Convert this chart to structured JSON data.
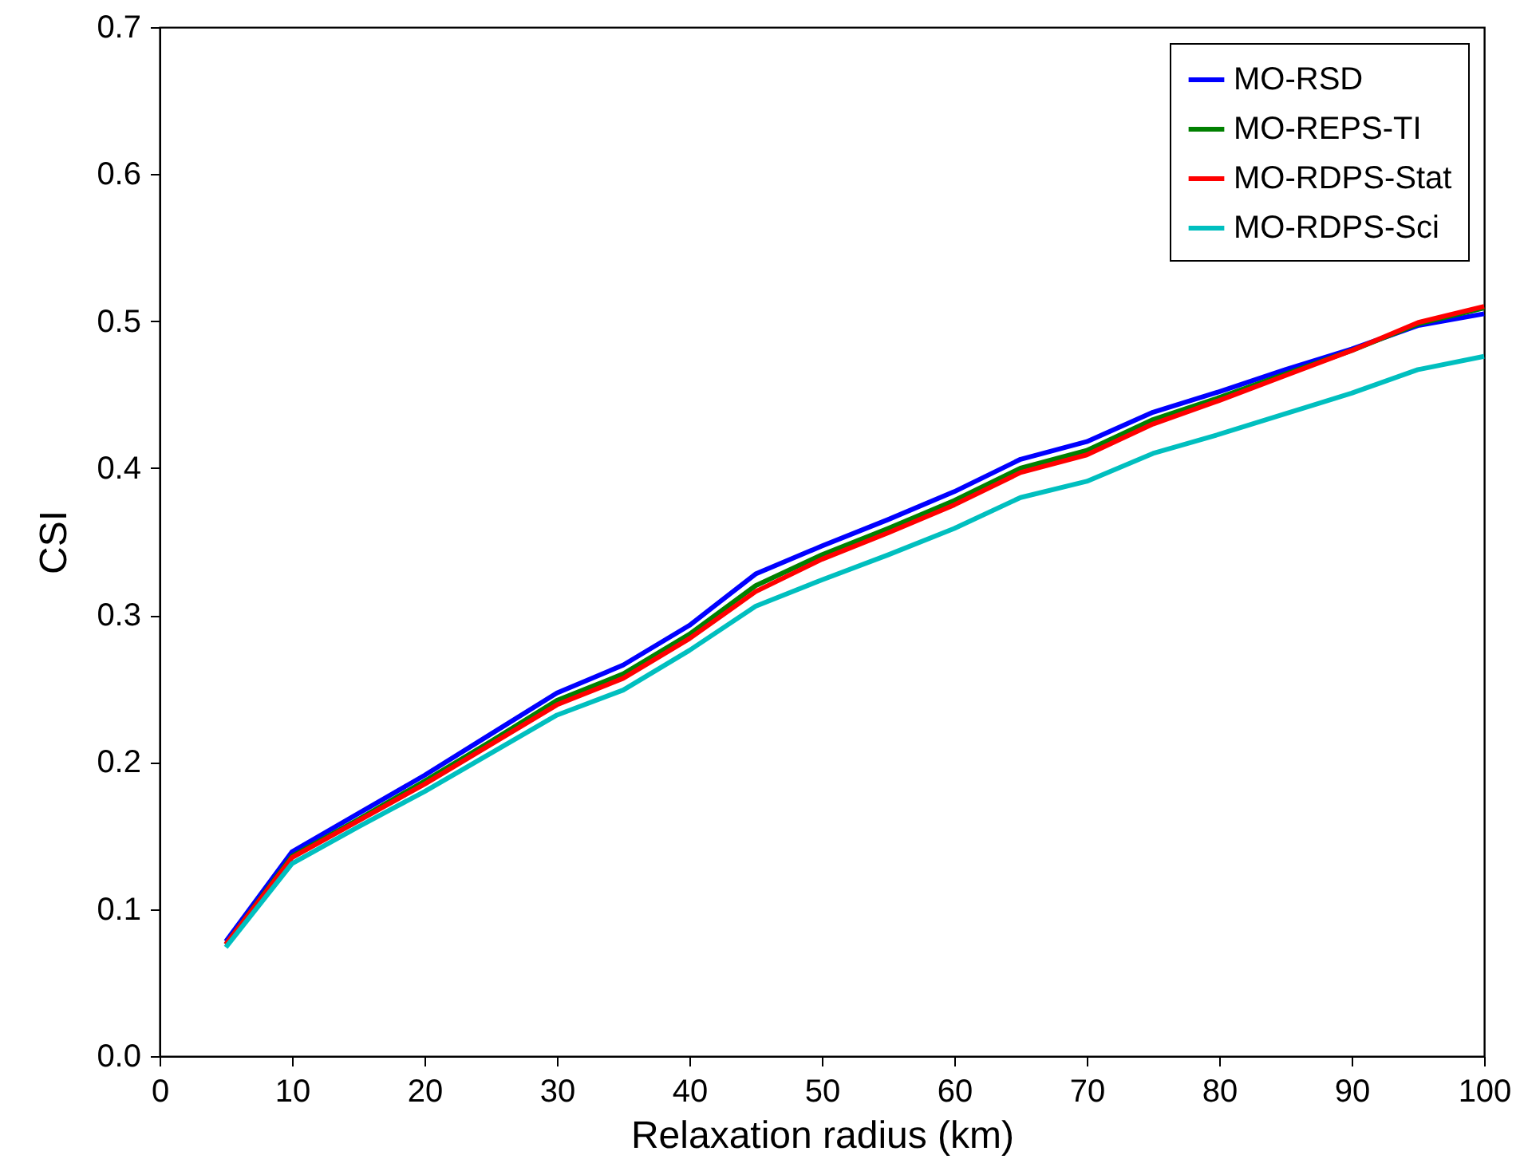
{
  "chart_data": {
    "type": "line",
    "xlabel": "Relaxation radius (km)",
    "ylabel": "CSI",
    "x": [
      5,
      10,
      15,
      20,
      25,
      30,
      35,
      40,
      45,
      50,
      55,
      60,
      65,
      70,
      75,
      80,
      85,
      90,
      95,
      100
    ],
    "xlim": [
      0,
      100
    ],
    "xticks": [
      0,
      10,
      20,
      30,
      40,
      50,
      60,
      70,
      80,
      90,
      100
    ],
    "ylim": [
      0,
      0.7
    ],
    "yticks": [
      {
        "value": 0,
        "label": "0.0"
      },
      0.1,
      0.2,
      0.3,
      0.4,
      0.5,
      0.6,
      0.7
    ],
    "grid": false,
    "legend": "top right",
    "marker": "none",
    "line_style": "solid",
    "series": [
      {
        "name": "MO-RSD",
        "color": "#0000ff",
        "values": [
          0.078,
          0.139,
          0.165,
          0.191,
          0.219,
          0.247,
          0.266,
          0.293,
          0.328,
          0.347,
          0.365,
          0.384,
          0.406,
          0.418,
          0.438,
          0.452,
          0.467,
          0.481,
          0.497,
          0.505
        ]
      },
      {
        "name": "MO-REPS-TI",
        "color": "#008000",
        "values": [
          0.076,
          0.136,
          0.161,
          0.187,
          0.214,
          0.242,
          0.26,
          0.287,
          0.32,
          0.341,
          0.359,
          0.378,
          0.4,
          0.412,
          0.433,
          0.448,
          0.464,
          0.48,
          0.498,
          0.509
        ]
      },
      {
        "name": "MO-RDPS-Stat",
        "color": "#ff0000",
        "values": [
          0.076,
          0.135,
          0.16,
          0.185,
          0.212,
          0.239,
          0.257,
          0.284,
          0.316,
          0.338,
          0.356,
          0.375,
          0.397,
          0.409,
          0.43,
          0.446,
          0.463,
          0.48,
          0.499,
          0.51
        ]
      },
      {
        "name": "MO-RDPS-Sci",
        "color": "#00bfbf",
        "values": [
          0.074,
          0.131,
          0.156,
          0.18,
          0.206,
          0.232,
          0.249,
          0.276,
          0.306,
          0.324,
          0.341,
          0.359,
          0.38,
          0.391,
          0.41,
          0.423,
          0.437,
          0.451,
          0.467,
          0.476
        ]
      }
    ]
  }
}
